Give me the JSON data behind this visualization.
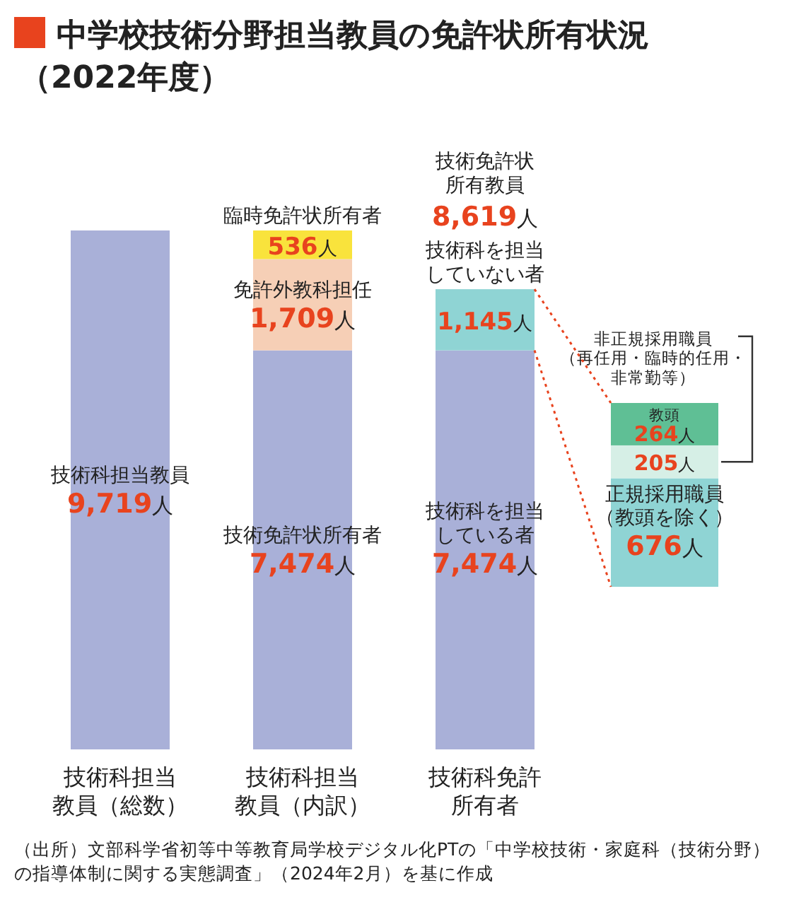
{
  "chart_data": [
    {
      "type": "bar",
      "stacked": true,
      "title": "中学校技術分野担当教員の免許状所有状況（2022年度）",
      "categories": [
        "技術科担当教員（総数）",
        "技術科担当教員（内訳）",
        "技術科免許所有者"
      ],
      "series": [
        {
          "name": "技術科担当教員",
          "color": "#a9b0d8",
          "values": [
            9719,
            null,
            null
          ],
          "value_labels": [
            "9,719人",
            null,
            null
          ]
        },
        {
          "name": "技術免許状所有者",
          "color": "#a9b0d8",
          "values": [
            null,
            7474,
            null
          ],
          "value_labels": [
            null,
            "7,474人",
            null
          ]
        },
        {
          "name": "技術科を担当している者",
          "color": "#a9b0d8",
          "values": [
            null,
            null,
            7474
          ],
          "value_labels": [
            null,
            null,
            "7,474人"
          ]
        },
        {
          "name": "免許外教科担任",
          "color": "#f6cfb6",
          "values": [
            null,
            1709,
            null
          ],
          "value_labels": [
            null,
            "1,709人",
            null
          ]
        },
        {
          "name": "臨時免許状所有者",
          "color": "#f9e33c",
          "values": [
            null,
            536,
            null
          ],
          "value_labels": [
            null,
            "536人",
            null
          ]
        },
        {
          "name": "技術科を担当していない者",
          "color": "#8fd4d4",
          "values": [
            null,
            null,
            1145
          ],
          "value_labels": [
            null,
            null,
            "1,145人"
          ]
        }
      ],
      "totals": [
        null,
        null,
        "技術免許状所有教員8,619人"
      ],
      "annotations": [
        "（出所）文部科学省初等中等教育局学校デジタル化PTの「中学校技術・家庭科（技術分野）の指導体制に関する実態調査」（2024年2月）を基に作成"
      ]
    },
    {
      "type": "bar",
      "stacked": true,
      "categories": [
        null
      ],
      "series": [
        {
          "name": "正規採用職員（教頭を除く）",
          "color": "#8fd4d4",
          "values": [
            676
          ],
          "value_labels": [
            "676人"
          ]
        },
        {
          "name": "非正規採用職員（再任用・臨時的任用・非常勤等）",
          "color": "#d6efe6",
          "values": [
            205
          ],
          "value_labels": [
            "205人"
          ]
        },
        {
          "name": "教頭",
          "color": "#5fbf95",
          "values": [
            264
          ],
          "value_labels": [
            "264人"
          ]
        }
      ]
    }
  ]
}
